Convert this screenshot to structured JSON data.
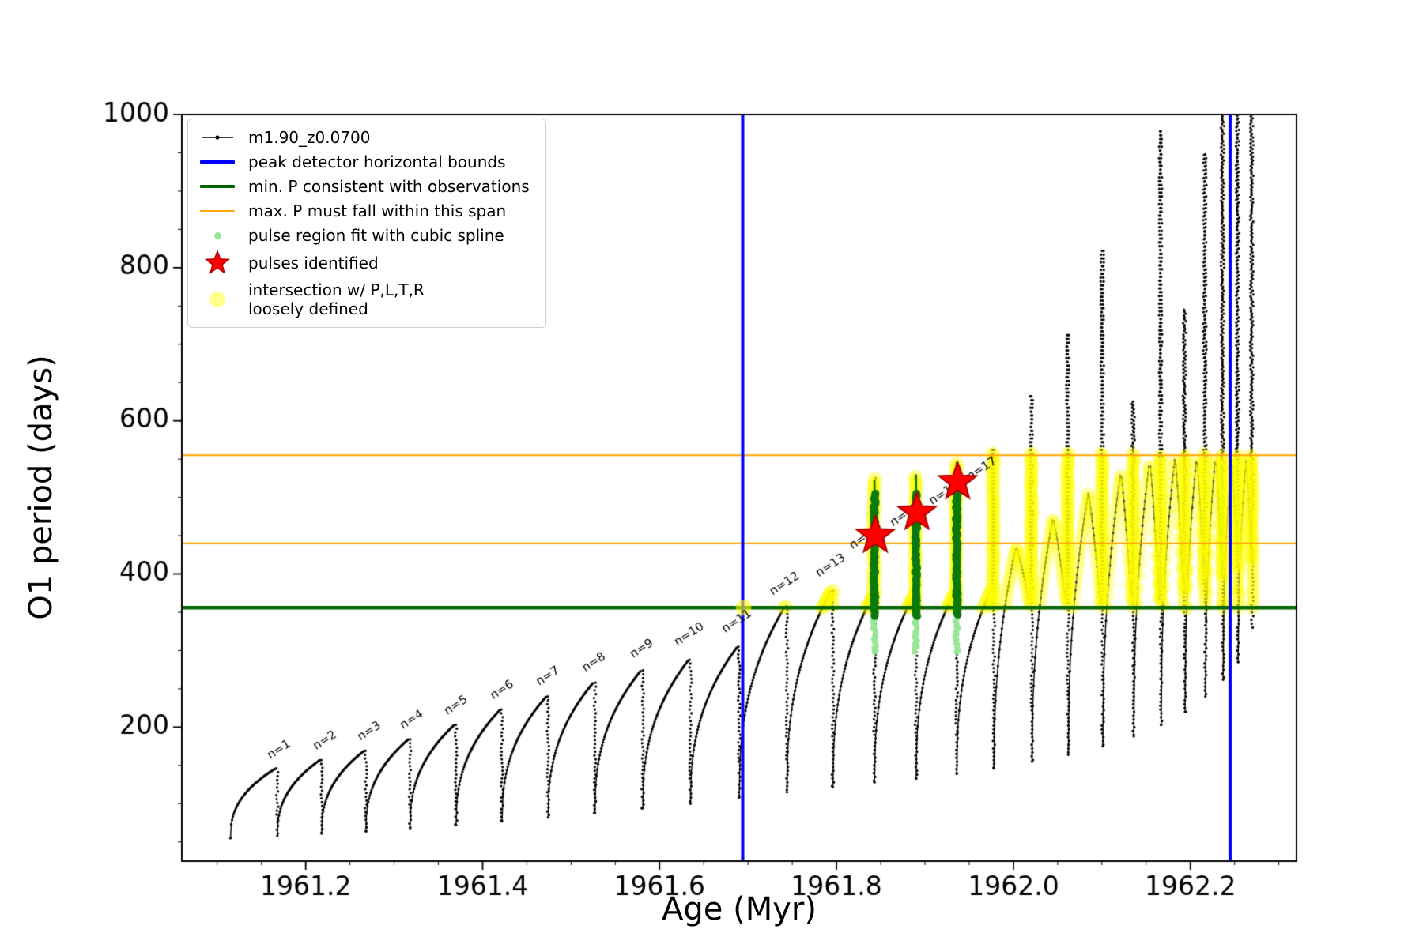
{
  "figure": {
    "background": "#ffffff"
  },
  "axes": {
    "xlabel": "Age (Myr)",
    "ylabel": "O1 period (days)",
    "x_ticks": [
      "1961.2",
      "1961.4",
      "1961.6",
      "1961.8",
      "1962.0",
      "1962.2"
    ],
    "x_tick_values": [
      1961.2,
      1961.4,
      1961.6,
      1961.8,
      1962.0,
      1962.2
    ],
    "y_ticks": [
      "200",
      "400",
      "600",
      "800",
      "1000"
    ],
    "y_tick_values": [
      200,
      400,
      600,
      800,
      1000
    ],
    "xlim": [
      1961.06,
      1962.32
    ],
    "ylim": [
      25,
      1000
    ]
  },
  "legend": {
    "entries": [
      {
        "marker": "line-dot",
        "color": "#000000",
        "label": "m1.90_z0.0700"
      },
      {
        "marker": "line",
        "color": "#0000ff",
        "label": "peak detector horizontal bounds"
      },
      {
        "marker": "line",
        "color": "#006400",
        "label": "min. P consistent with observations"
      },
      {
        "marker": "line",
        "color": "#ffa500",
        "label": "max. P must fall within this span"
      },
      {
        "marker": "dot",
        "color": "#98e698",
        "label": "pulse region fit with cubic spline"
      },
      {
        "marker": "star",
        "color": "#ff0000",
        "label": "pulses identified"
      },
      {
        "marker": "big-dot",
        "color": "#ffff00",
        "label": "intersection w/ P,L,T,R\nloosely defined"
      }
    ]
  },
  "chart_data": {
    "type": "line",
    "series": "m1.90_z0.0700",
    "title": "",
    "xlabel": "Age (Myr)",
    "ylabel": "O1 period (days)",
    "xlim": [
      1961.06,
      1962.32
    ],
    "ylim": [
      25,
      1000
    ],
    "grid": false,
    "legend_position": "upper-left",
    "colors": {
      "curve": "#000000",
      "bounds": "#0000ff",
      "min_p": "#006400",
      "max_p_span": "#ffa500",
      "pulse_fit": "#98e698",
      "pulse_region": "#0b7a0b",
      "pulses": "#ff0000",
      "intersection": "#ffff00"
    },
    "reference_lines": {
      "blue_vertical_x": [
        1961.694,
        1962.245
      ],
      "green_horizontal_y": 356,
      "orange_horizontal_y": [
        440,
        555
      ]
    },
    "yellow_band": {
      "x_range": [
        1961.698,
        1962.272
      ],
      "y_range": [
        354,
        557
      ]
    },
    "yellow_seed_dot": {
      "x": 1961.695,
      "y": 356
    },
    "pulses": [
      {
        "n": 1,
        "x0": 1961.115,
        "x1": 1961.168,
        "base": 55,
        "peak": 146,
        "shape": "fin"
      },
      {
        "n": 2,
        "x0": 1961.168,
        "x1": 1961.218,
        "base": 58,
        "peak": 157,
        "shape": "fin"
      },
      {
        "n": 3,
        "x0": 1961.218,
        "x1": 1961.268,
        "base": 61,
        "peak": 169,
        "shape": "fin"
      },
      {
        "n": 4,
        "x0": 1961.268,
        "x1": 1961.318,
        "base": 64,
        "peak": 184,
        "shape": "fin"
      },
      {
        "n": 5,
        "x0": 1961.318,
        "x1": 1961.37,
        "base": 68,
        "peak": 203,
        "shape": "fin"
      },
      {
        "n": 6,
        "x0": 1961.37,
        "x1": 1961.422,
        "base": 72,
        "peak": 223,
        "shape": "fin"
      },
      {
        "n": 7,
        "x0": 1961.422,
        "x1": 1961.474,
        "base": 77,
        "peak": 240,
        "shape": "fin"
      },
      {
        "n": 8,
        "x0": 1961.474,
        "x1": 1961.527,
        "base": 82,
        "peak": 258,
        "shape": "fin"
      },
      {
        "n": 9,
        "x0": 1961.527,
        "x1": 1961.581,
        "base": 88,
        "peak": 274,
        "shape": "fin"
      },
      {
        "n": 10,
        "x0": 1961.581,
        "x1": 1961.635,
        "base": 94,
        "peak": 288,
        "shape": "fin"
      },
      {
        "n": 11,
        "x0": 1961.635,
        "x1": 1961.69,
        "base": 100,
        "peak": 305,
        "shape": "fin"
      },
      {
        "n": 12,
        "x0": 1961.69,
        "x1": 1961.744,
        "base": 108,
        "peak": 358,
        "shape": "fin"
      },
      {
        "n": 13,
        "x0": 1961.744,
        "x1": 1961.796,
        "base": 115,
        "peak": 378,
        "shape": "fin"
      },
      {
        "n": 14,
        "x0": 1961.796,
        "x1": 1961.843,
        "base": 122,
        "peak": 372,
        "shape": "fin",
        "spike": 525
      },
      {
        "n": 15,
        "x0": 1961.843,
        "x1": 1961.89,
        "base": 128,
        "peak": 374,
        "shape": "fin",
        "spike": 528
      },
      {
        "n": 16,
        "x0": 1961.89,
        "x1": 1961.936,
        "base": 133,
        "peak": 377,
        "shape": "fin",
        "spike": 545
      },
      {
        "n": 17,
        "x0": 1961.936,
        "x1": 1961.978,
        "base": 139,
        "peak": 382,
        "shape": "fin",
        "spike": 562
      },
      {
        "n": 18,
        "x0": 1961.978,
        "x1": 1962.021,
        "base": 146,
        "peak": 435,
        "shape": "arch",
        "spike": 632
      },
      {
        "n": 19,
        "x0": 1962.021,
        "x1": 1962.062,
        "base": 155,
        "peak": 472,
        "shape": "arch",
        "spike": 712
      },
      {
        "n": 20,
        "x0": 1962.062,
        "x1": 1962.101,
        "base": 164,
        "peak": 505,
        "shape": "arch",
        "spike": 822
      },
      {
        "n": 21,
        "x0": 1962.101,
        "x1": 1962.136,
        "base": 175,
        "peak": 532,
        "shape": "arch",
        "spike": 625
      },
      {
        "n": 22,
        "x0": 1962.136,
        "x1": 1962.167,
        "base": 188,
        "peak": 548,
        "shape": "arch",
        "spike": 978
      },
      {
        "n": 23,
        "x0": 1962.167,
        "x1": 1962.194,
        "base": 203,
        "peak": 552,
        "shape": "arch",
        "spike": 745
      },
      {
        "n": 24,
        "x0": 1962.194,
        "x1": 1962.217,
        "base": 220,
        "peak": 554,
        "shape": "arch",
        "spike": 948
      },
      {
        "n": 25,
        "x0": 1962.217,
        "x1": 1962.237,
        "base": 240,
        "peak": 555,
        "shape": "arch",
        "spike": 1020
      },
      {
        "n": 26,
        "x0": 1962.237,
        "x1": 1962.254,
        "base": 262,
        "peak": 555,
        "shape": "arch",
        "spike": 1020
      },
      {
        "n": 27,
        "x0": 1962.254,
        "x1": 1962.27,
        "base": 285,
        "peak": 550,
        "shape": "arch",
        "spike": 1020
      }
    ],
    "pulse_labels": [
      {
        "text": "n=1",
        "x": 1961.16,
        "y": 158
      },
      {
        "text": "n=2",
        "x": 1961.212,
        "y": 170
      },
      {
        "text": "n=3",
        "x": 1961.262,
        "y": 182
      },
      {
        "text": "n=4",
        "x": 1961.31,
        "y": 197
      },
      {
        "text": "n=5",
        "x": 1961.36,
        "y": 216
      },
      {
        "text": "n=6",
        "x": 1961.412,
        "y": 236
      },
      {
        "text": "n=7",
        "x": 1961.464,
        "y": 254
      },
      {
        "text": "n=8",
        "x": 1961.516,
        "y": 272
      },
      {
        "text": "n=9",
        "x": 1961.57,
        "y": 290
      },
      {
        "text": "n=10",
        "x": 1961.62,
        "y": 306
      },
      {
        "text": "n=11",
        "x": 1961.674,
        "y": 323
      },
      {
        "text": "n=12",
        "x": 1961.728,
        "y": 372
      },
      {
        "text": "n=13",
        "x": 1961.78,
        "y": 396
      },
      {
        "text": "n=14",
        "x": 1961.818,
        "y": 432
      },
      {
        "text": "n=15",
        "x": 1961.864,
        "y": 462
      },
      {
        "text": "n=16",
        "x": 1961.908,
        "y": 490
      },
      {
        "text": "n=17",
        "x": 1961.951,
        "y": 522
      }
    ],
    "green_columns": [
      {
        "x": 1961.843,
        "y0": 345,
        "y1": 505,
        "tip": 523
      },
      {
        "x": 1961.89,
        "y0": 345,
        "y1": 506,
        "tip": 530
      },
      {
        "x": 1961.936,
        "y0": 347,
        "y1": 508,
        "tip": 546
      }
    ],
    "light_green_dots": {
      "x": [
        1961.843,
        1961.89,
        1961.936
      ],
      "y0": 298,
      "y1": 348
    },
    "stars": [
      {
        "x": 1961.844,
        "y": 450
      },
      {
        "x": 1961.891,
        "y": 480
      },
      {
        "x": 1961.937,
        "y": 520
      }
    ]
  }
}
